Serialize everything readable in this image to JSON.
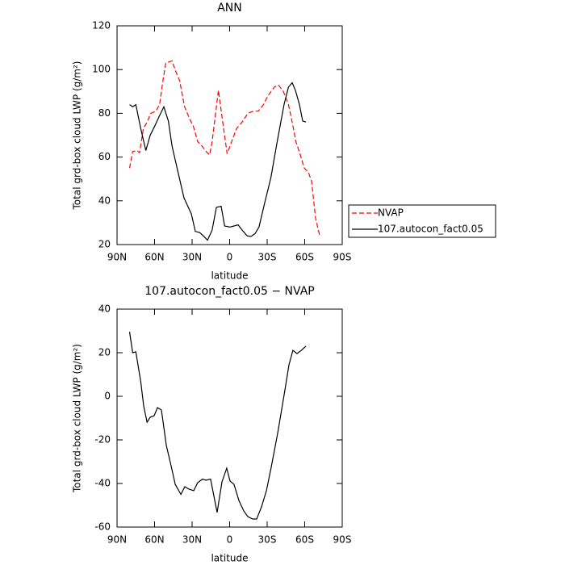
{
  "chart_data": [
    {
      "type": "line",
      "title": "ANN",
      "x_label": "latitude",
      "y_label": "Total grd-box cloud LWP (g/m²)",
      "xlim": [
        90,
        -90
      ],
      "ylim": [
        20,
        120
      ],
      "xticks": [
        {
          "value": 90,
          "label": "90N"
        },
        {
          "value": 60,
          "label": "60N"
        },
        {
          "value": 30,
          "label": "30N"
        },
        0,
        {
          "value": -30,
          "label": "30S"
        },
        {
          "value": -60,
          "label": "60S"
        },
        {
          "value": -90,
          "label": "90S"
        }
      ],
      "yticks": [
        20,
        40,
        60,
        80,
        100,
        120
      ],
      "legend": "right",
      "series": [
        {
          "name": "NVAP",
          "color": "#ff0000",
          "dashed": true,
          "x": [
            80,
            77.5,
            74,
            72,
            69,
            66,
            63,
            59,
            56,
            53,
            51,
            46,
            43,
            40,
            36,
            32,
            29,
            25.5,
            22,
            18,
            16,
            14,
            9,
            6,
            2,
            -1.6,
            -5.5,
            -10,
            -14.5,
            -19,
            -23,
            -27,
            -30.6,
            -35.8,
            -39,
            -43,
            -47,
            -50,
            -53,
            -56.5,
            -59.7,
            -63,
            -65.5,
            -68.7,
            -72
          ],
          "values": [
            55,
            62.5,
            63,
            62,
            73,
            76,
            80,
            81,
            84,
            96,
            103,
            104,
            99,
            95,
            83,
            77.5,
            74,
            67,
            65,
            62,
            61,
            67,
            90.5,
            78,
            61.5,
            67,
            73,
            76,
            80,
            81,
            81,
            84,
            88,
            92,
            93,
            90,
            84,
            76,
            67,
            61,
            55,
            53,
            49,
            32,
            24
          ]
        },
        {
          "name": "107.autocon_fact0.05",
          "color": "#000000",
          "dashed": false,
          "x": [
            80,
            77.5,
            75,
            71,
            67,
            63.5,
            60,
            56,
            52.6,
            49,
            46,
            41.6,
            36.5,
            30.6,
            27.4,
            24,
            21,
            17.7,
            14,
            10.6,
            6.8,
            4,
            -0.3,
            -3.5,
            -6.8,
            -10,
            -14,
            -17,
            -20.3,
            -23.5,
            -28,
            -33,
            -38,
            -43.5,
            -47,
            -50,
            -52.6,
            -55.8,
            -58.4,
            -61
          ],
          "values": [
            84,
            83,
            84,
            73,
            63,
            70,
            74,
            79,
            83,
            76.5,
            65,
            54,
            41.4,
            34,
            26,
            25.5,
            24,
            22,
            26.6,
            37,
            37.5,
            28.5,
            28,
            28.5,
            29,
            26.6,
            24,
            23.7,
            25,
            28,
            39,
            50.6,
            67,
            84,
            92,
            94,
            90.5,
            84,
            76.5,
            76
          ]
        }
      ]
    },
    {
      "type": "line",
      "title": "107.autocon_fact0.05 − NVAP",
      "x_label": "latitude",
      "y_label": "Total grd-box cloud LWP (g/m²)",
      "xlim": [
        90,
        -90
      ],
      "ylim": [
        -60,
        40
      ],
      "xticks": [
        {
          "value": 90,
          "label": "90N"
        },
        {
          "value": 60,
          "label": "60N"
        },
        {
          "value": 30,
          "label": "30N"
        },
        0,
        {
          "value": -30,
          "label": "30S"
        },
        {
          "value": -60,
          "label": "60S"
        },
        {
          "value": -90,
          "label": "90S"
        }
      ],
      "yticks": [
        -60,
        -40,
        -20,
        0,
        20,
        40
      ],
      "series": [
        {
          "color": "#000000",
          "dashed": false,
          "x": [
            80,
            77.5,
            75,
            71,
            68.7,
            66,
            63.5,
            60.3,
            57.7,
            54.5,
            50.6,
            46.8,
            43.5,
            39,
            35.8,
            32.6,
            28.7,
            25.5,
            21.6,
            19,
            15.2,
            10,
            6.1,
            2.3,
            -0.3,
            -3.5,
            -7.4,
            -11.3,
            -14.5,
            -18.4,
            -21.6,
            -25.5,
            -29.4,
            -33.2,
            -38.4,
            -43.5,
            -47.4,
            -50.6,
            -53.9,
            -57.1,
            -61
          ],
          "values": [
            29.6,
            20,
            20.4,
            6.7,
            -4.4,
            -11.9,
            -9.6,
            -8.9,
            -5.2,
            -6.3,
            -22.6,
            -31.9,
            -40.4,
            -45,
            -41.5,
            -42.6,
            -43.3,
            -39.6,
            -38,
            -38.5,
            -38,
            -53.3,
            -39.3,
            -33,
            -38.9,
            -40.4,
            -47.8,
            -52.6,
            -55.2,
            -56.3,
            -56.3,
            -50.7,
            -43.3,
            -32.6,
            -17,
            0.4,
            14.4,
            21.1,
            19.6,
            21,
            23
          ]
        }
      ]
    }
  ]
}
